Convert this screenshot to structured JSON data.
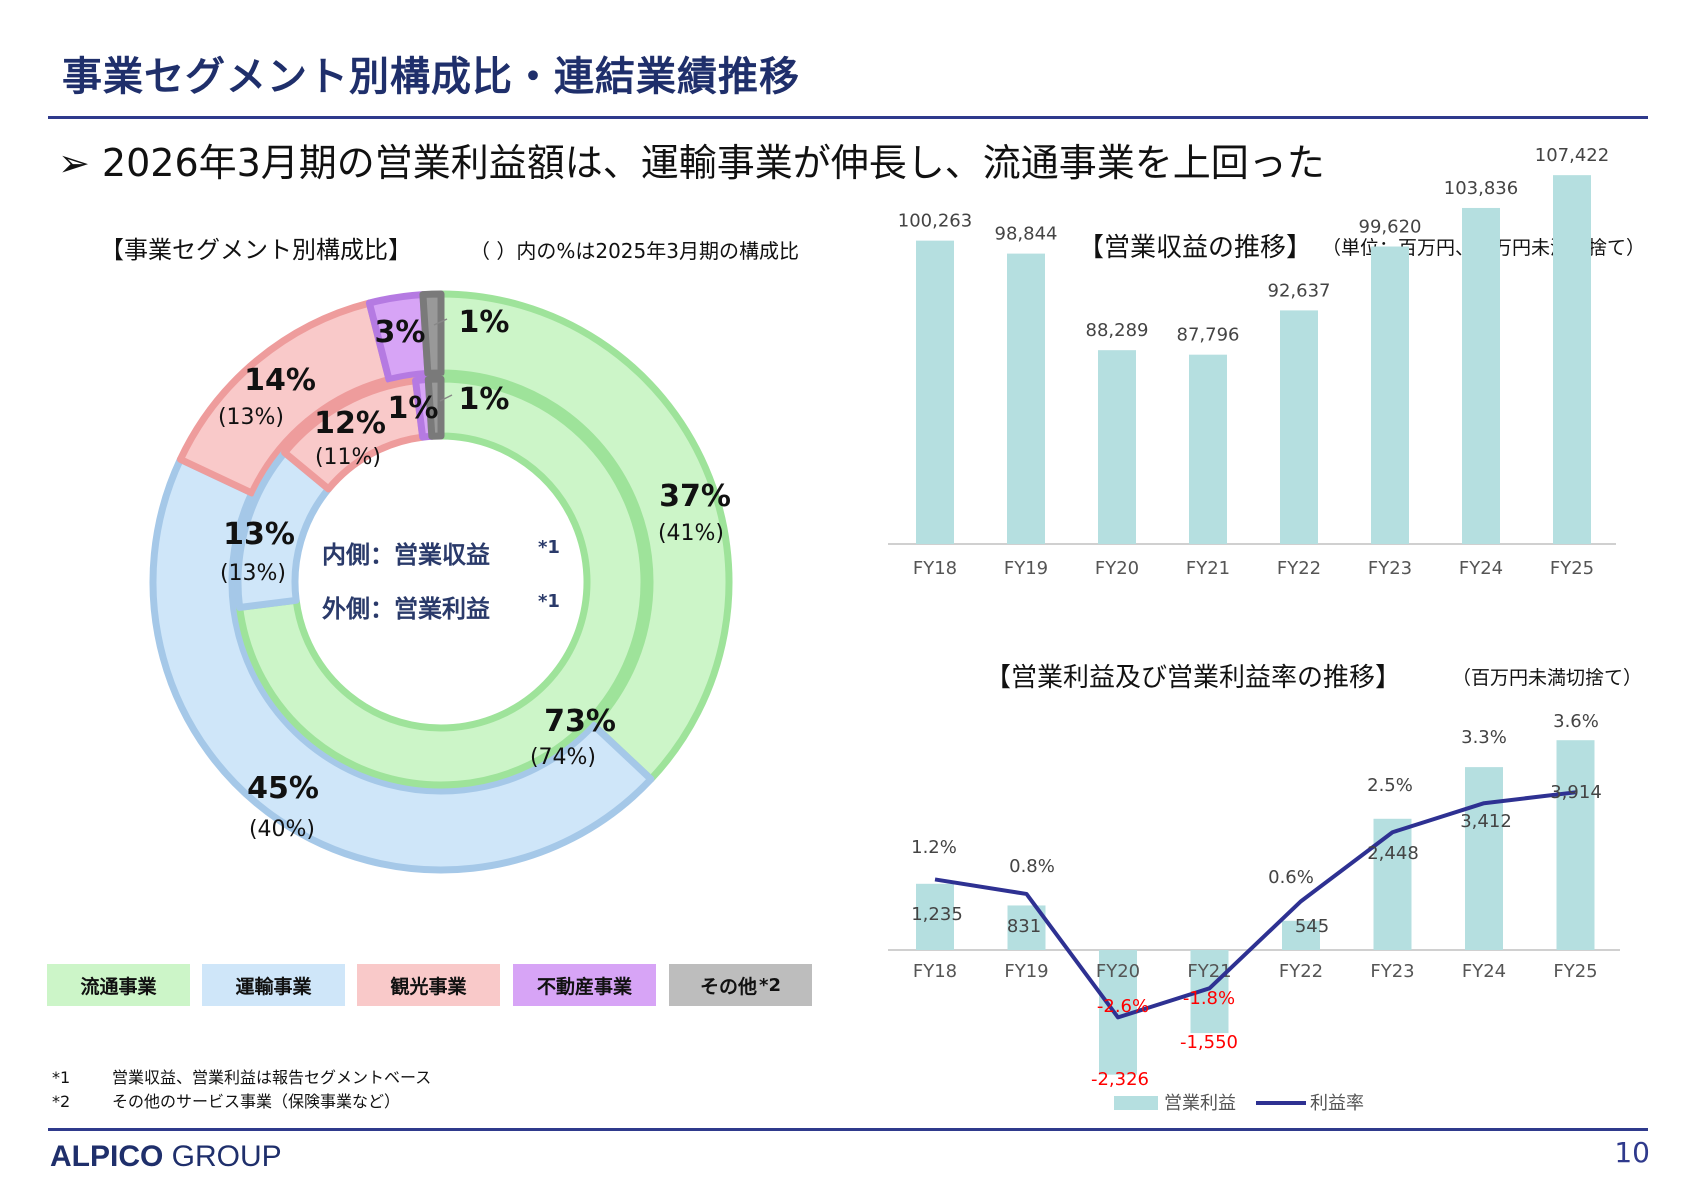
{
  "title": "事業セグメント別構成比・連結業績推移",
  "headline": "➢ 2026年3月期の営業利益額は、運輸事業が伸長し、流通事業を上回った",
  "donut": {
    "heading": "【事業セグメント別構成比】",
    "note": "（ ）内の%は2025年3月期の構成比",
    "center_inner": "内側：営業収益",
    "center_outer": "外側：営業利益",
    "footnote_mark": "*1",
    "outer_pct": [
      "37%",
      "45%",
      "14%",
      "3%",
      "1%"
    ],
    "outer_prev": [
      "(41%)",
      "(40%)",
      "(13%)",
      "",
      ""
    ],
    "inner_pct": [
      "73%",
      "13%",
      "12%",
      "1%",
      "1%"
    ],
    "inner_prev": [
      "(74%)",
      "(13%)",
      "(11%)",
      "",
      ""
    ],
    "colors": [
      "#ccf5c8",
      "#cfe6f9",
      "#f9c9c9",
      "#d7a4f6",
      "#999999"
    ],
    "edge_colors": [
      "#9ee39a",
      "#a5c8e8",
      "#ee9c9c",
      "#b57ae2",
      "#7a7a7a"
    ]
  },
  "legend": [
    {
      "label": "流通事業",
      "color": "#ccf5c8",
      "sup": ""
    },
    {
      "label": "運輸事業",
      "color": "#cfe6f9",
      "sup": ""
    },
    {
      "label": "観光事業",
      "color": "#f9c9c9",
      "sup": ""
    },
    {
      "label": "不動産事業",
      "color": "#d7a4f6",
      "sup": ""
    },
    {
      "label": "その他",
      "color": "#bdbdbd",
      "sup": "*2"
    }
  ],
  "footnotes": [
    {
      "mark": "*1",
      "text": "営業収益、営業利益は報告セグメントベース"
    },
    {
      "mark": "*2",
      "text": "その他のサービス事業（保険事業など）"
    }
  ],
  "revenue_chart": {
    "heading": "【営業収益の推移】",
    "unit": "（単位：百万円、百万円未満切捨て）"
  },
  "profit_chart": {
    "heading": "【営業利益及び営業利益率の推移】",
    "unit": "（百万円未満切捨て）",
    "legend_bar": "営業利益",
    "legend_line": "利益率"
  },
  "chart_data": [
    {
      "type": "pie",
      "title": "事業セグメント別構成比",
      "categories": [
        "流通事業",
        "運輸事業",
        "観光事業",
        "不動産事業",
        "その他"
      ],
      "series": [
        {
          "name": "営業利益",
          "values": [
            37,
            45,
            14,
            3,
            1
          ],
          "previous": [
            41,
            40,
            13,
            null,
            null
          ]
        },
        {
          "name": "営業収益",
          "values": [
            73,
            13,
            12,
            1,
            1
          ],
          "previous": [
            74,
            13,
            11,
            null,
            null
          ]
        }
      ]
    },
    {
      "type": "bar",
      "title": "営業収益の推移",
      "categories": [
        "FY18",
        "FY19",
        "FY20",
        "FY21",
        "FY22",
        "FY23",
        "FY24",
        "FY25"
      ],
      "values": [
        100263,
        98844,
        88289,
        87796,
        92637,
        99620,
        103836,
        107422
      ],
      "labels": [
        "100,263",
        "98,844",
        "88,289",
        "87,796",
        "92,637",
        "99,620",
        "103,836",
        "107,422"
      ],
      "bar_color": "#b5dfe0",
      "ylim": [
        70000,
        110000
      ]
    },
    {
      "type": "bar",
      "title": "営業利益及び営業利益率の推移",
      "categories": [
        "FY18",
        "FY19",
        "FY20",
        "FY21",
        "FY22",
        "FY23",
        "FY24",
        "FY25"
      ],
      "series": [
        {
          "name": "営業利益",
          "type": "bar",
          "values": [
            1235,
            831,
            -2326,
            -1550,
            545,
            2448,
            3412,
            3914
          ],
          "labels": [
            "1,235",
            "831",
            "-2,326",
            "-1,550",
            "545",
            "2,448",
            "3,412",
            "3,914"
          ],
          "color": "#b5dfe0"
        },
        {
          "name": "利益率",
          "type": "line",
          "values": [
            1.2,
            0.8,
            -2.6,
            -1.8,
            0.6,
            2.5,
            3.3,
            3.6
          ],
          "labels": [
            "1.2%",
            "0.8%",
            "-2.6%",
            "-1.8%",
            "0.6%",
            "2.5%",
            "3.3%",
            "3.6%"
          ],
          "color": "#2e3192"
        }
      ],
      "negative_label_color": "#ff0000"
    }
  ]
}
